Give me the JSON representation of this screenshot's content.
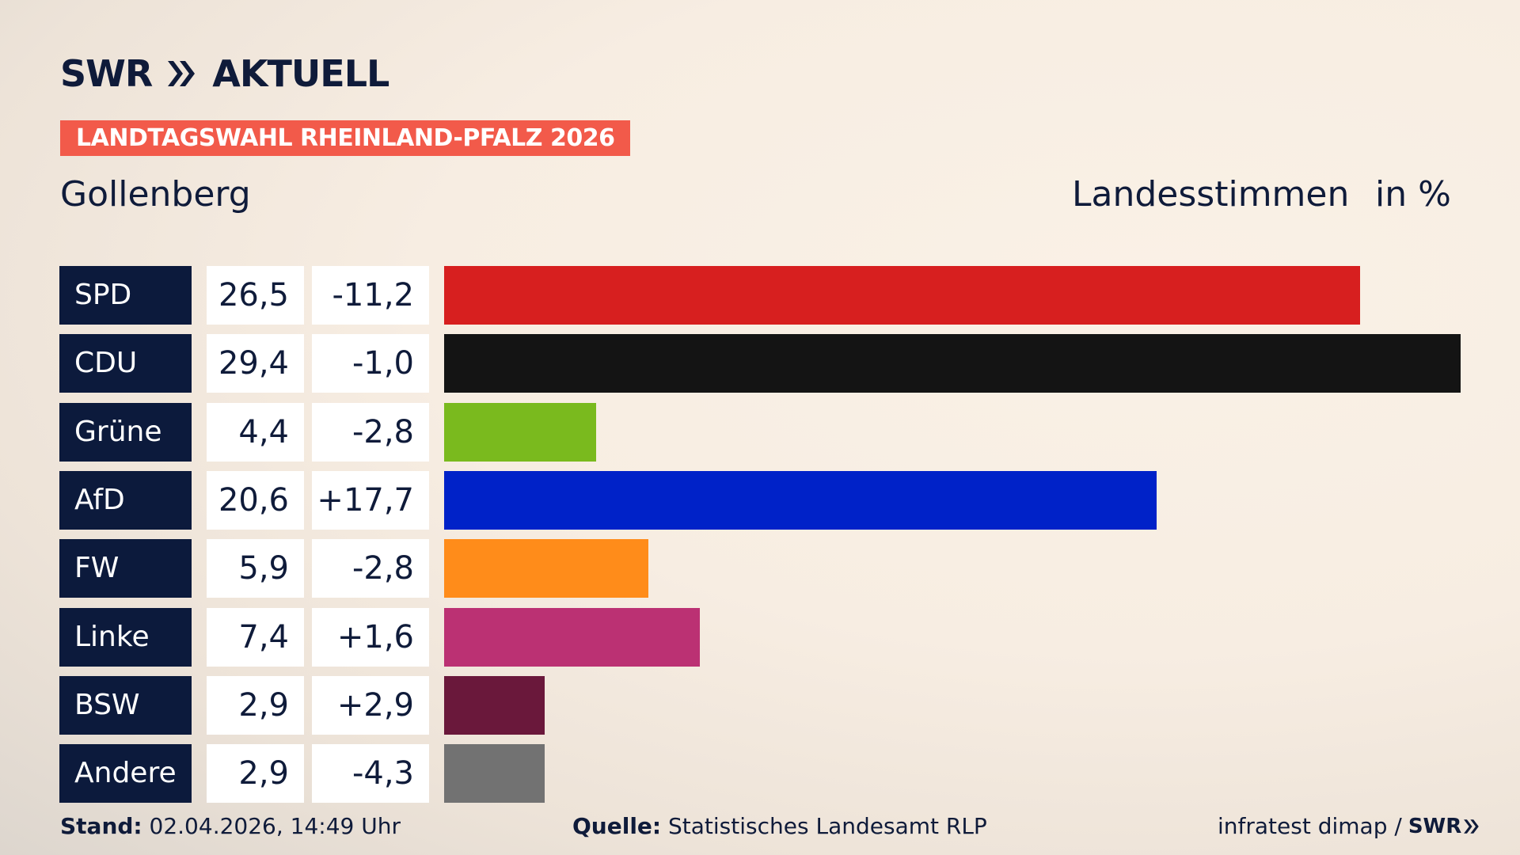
{
  "header": {
    "brand_a": "SWR",
    "brand_b": "AKTUELL",
    "ribbon": "LANDTAGSWAHL RHEINLAND-PFALZ 2026",
    "place": "Gollenberg",
    "metric": "Landesstimmen",
    "unit": "in %"
  },
  "chart_data": {
    "type": "bar",
    "orientation": "horizontal",
    "categories": [
      "SPD",
      "CDU",
      "Grüne",
      "AfD",
      "FW",
      "Linke",
      "BSW",
      "Andere"
    ],
    "values": [
      26.5,
      29.4,
      4.4,
      20.6,
      5.9,
      7.4,
      2.9,
      2.9
    ],
    "value_labels": [
      "26,5",
      "29,4",
      "4,4",
      "20,6",
      "5,9",
      "7,4",
      "2,9",
      "2,9"
    ],
    "changes": [
      -11.2,
      -1.0,
      -2.8,
      17.7,
      -2.8,
      1.6,
      2.9,
      -4.3
    ],
    "change_labels": [
      "-11,2",
      "-1,0",
      "-2,8",
      "+17,7",
      "-2,8",
      "+1,6",
      "+2,9",
      "-4,3"
    ],
    "colors": [
      "#d71f1f",
      "#141414",
      "#7aba1e",
      "#0022c8",
      "#ff8c1a",
      "#bb3173",
      "#6a183b",
      "#727272"
    ],
    "xlim": [
      0,
      29.4
    ],
    "grid": false
  },
  "footer": {
    "stand_label": "Stand:",
    "stand_value": "02.04.2026, 14:49 Uhr",
    "quelle_label": "Quelle:",
    "quelle_value": "Statistisches Landesamt RLP",
    "credit": "infratest dimap /",
    "credit_brand": "SWR"
  }
}
